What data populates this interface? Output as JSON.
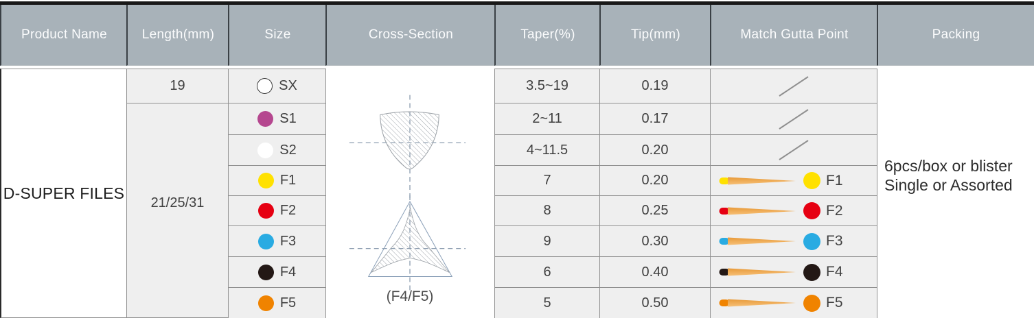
{
  "header": {
    "columns": [
      "Product Name",
      "Length(mm)",
      "Size",
      "Cross-Section",
      "Taper(%)",
      "Tip(mm)",
      "Match Gutta Point",
      "Packing"
    ]
  },
  "product": {
    "name": "D-SUPER FILES"
  },
  "length": {
    "first": "19",
    "rest": "21/25/31"
  },
  "rows": [
    {
      "size": "SX",
      "color": "#ffffff",
      "outlined": true,
      "taper": "3.5~19",
      "tip": "0.19",
      "gutta": "slash"
    },
    {
      "size": "S1",
      "color": "#b5478f",
      "outlined": false,
      "taper": "2~11",
      "tip": "0.17",
      "gutta": "slash"
    },
    {
      "size": "S2",
      "color": "#ffffff",
      "outlined": false,
      "taper": "4~11.5",
      "tip": "0.20",
      "gutta": "slash"
    },
    {
      "size": "F1",
      "color": "#ffe100",
      "outlined": false,
      "taper": "7",
      "tip": "0.20",
      "gutta": "point"
    },
    {
      "size": "F2",
      "color": "#e60012",
      "outlined": false,
      "taper": "8",
      "tip": "0.25",
      "gutta": "point"
    },
    {
      "size": "F3",
      "color": "#29abe2",
      "outlined": false,
      "taper": "9",
      "tip": "0.30",
      "gutta": "point"
    },
    {
      "size": "F4",
      "color": "#231815",
      "outlined": false,
      "taper": "6",
      "tip": "0.40",
      "gutta": "point"
    },
    {
      "size": "F5",
      "color": "#f08300",
      "outlined": false,
      "taper": "5",
      "tip": "0.50",
      "gutta": "point"
    }
  ],
  "cross_section": {
    "label": "(F4/F5)"
  },
  "packing": {
    "line1": "6pcs/box or blister",
    "line2": "Single or Assorted"
  },
  "colors": {
    "header_bg": "#a8b2b9",
    "header_text": "#fbfcfd",
    "cell_bg": "#efefef",
    "cell_border": "#909090",
    "cone_dark": "#e89a39",
    "cone_light": "#f6c077",
    "dash_line": "#7e91a6",
    "hatch_line": "#a0a5ab",
    "slash_line": "#8f8f8f"
  }
}
